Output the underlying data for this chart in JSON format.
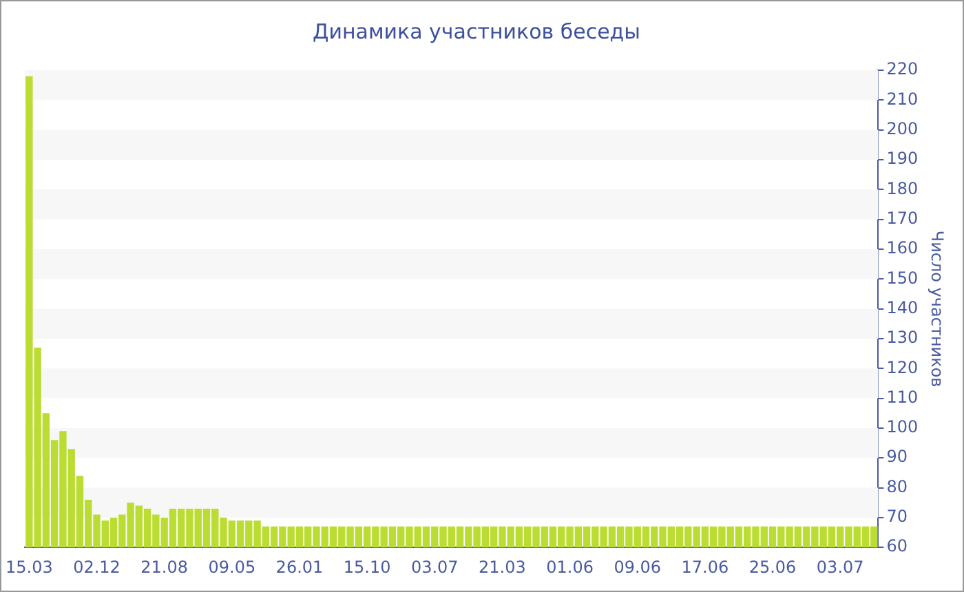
{
  "chart_data": {
    "type": "bar",
    "title": "Динамика участников беседы",
    "ylabel": "Число участников",
    "categories": [
      "15.03",
      null,
      null,
      null,
      null,
      null,
      null,
      null,
      "02.12",
      null,
      null,
      null,
      null,
      null,
      null,
      null,
      "21.08",
      null,
      null,
      null,
      null,
      null,
      null,
      null,
      "09.05",
      null,
      null,
      null,
      null,
      null,
      null,
      null,
      "26.01",
      null,
      null,
      null,
      null,
      null,
      null,
      null,
      "15.10",
      null,
      null,
      null,
      null,
      null,
      null,
      null,
      "03.07",
      null,
      null,
      null,
      null,
      null,
      null,
      null,
      "21.03",
      null,
      null,
      null,
      null,
      null,
      null,
      null,
      "01.06",
      null,
      null,
      null,
      null,
      null,
      null,
      null,
      "09.06",
      null,
      null,
      null,
      null,
      null,
      null,
      null,
      "17.06",
      null,
      null,
      null,
      null,
      null,
      null,
      null,
      "25.06",
      null,
      null,
      null,
      null,
      null,
      null,
      null,
      "03.07",
      null,
      null,
      null,
      null
    ],
    "values": [
      218,
      127,
      105,
      96,
      99,
      93,
      84,
      76,
      71,
      69,
      70,
      71,
      75,
      74,
      73,
      71,
      70,
      73,
      73,
      73,
      73,
      73,
      73,
      70,
      69,
      69,
      69,
      69,
      67,
      67,
      67,
      67,
      67,
      67,
      67,
      67,
      67,
      67,
      67,
      67,
      67,
      67,
      67,
      67,
      67,
      67,
      67,
      67,
      67,
      67,
      67,
      67,
      67,
      67,
      67,
      67,
      67,
      67,
      67,
      67,
      67,
      67,
      67,
      67,
      67,
      67,
      67,
      67,
      67,
      67,
      67,
      67,
      67,
      67,
      67,
      67,
      67,
      67,
      67,
      67,
      67,
      67,
      67,
      67,
      67,
      67,
      67,
      67,
      67,
      67,
      67,
      67,
      67,
      67,
      67,
      67,
      67,
      67,
      67,
      67,
      67
    ],
    "color": "#bbdd33",
    "ylim": [
      60,
      220
    ],
    "yticks": [
      60,
      70,
      80,
      90,
      100,
      110,
      120,
      130,
      140,
      150,
      160,
      170,
      180,
      190,
      200,
      210,
      220
    ],
    "bands": [
      {
        "axis": "y",
        "from": 70,
        "to": 80,
        "color": "#f7f7f7"
      },
      {
        "axis": "y",
        "from": 90,
        "to": 100,
        "color": "#f7f7f7"
      },
      {
        "axis": "y",
        "from": 110,
        "to": 120,
        "color": "#f7f7f7"
      },
      {
        "axis": "y",
        "from": 130,
        "to": 140,
        "color": "#f7f7f7"
      },
      {
        "axis": "y",
        "from": 150,
        "to": 160,
        "color": "#f7f7f7"
      },
      {
        "axis": "y",
        "from": 170,
        "to": 180,
        "color": "#f7f7f7"
      },
      {
        "axis": "y",
        "from": 190,
        "to": 200,
        "color": "#f7f7f7"
      },
      {
        "axis": "y",
        "from": 210,
        "to": 220,
        "color": "#f7f7f7"
      }
    ]
  }
}
